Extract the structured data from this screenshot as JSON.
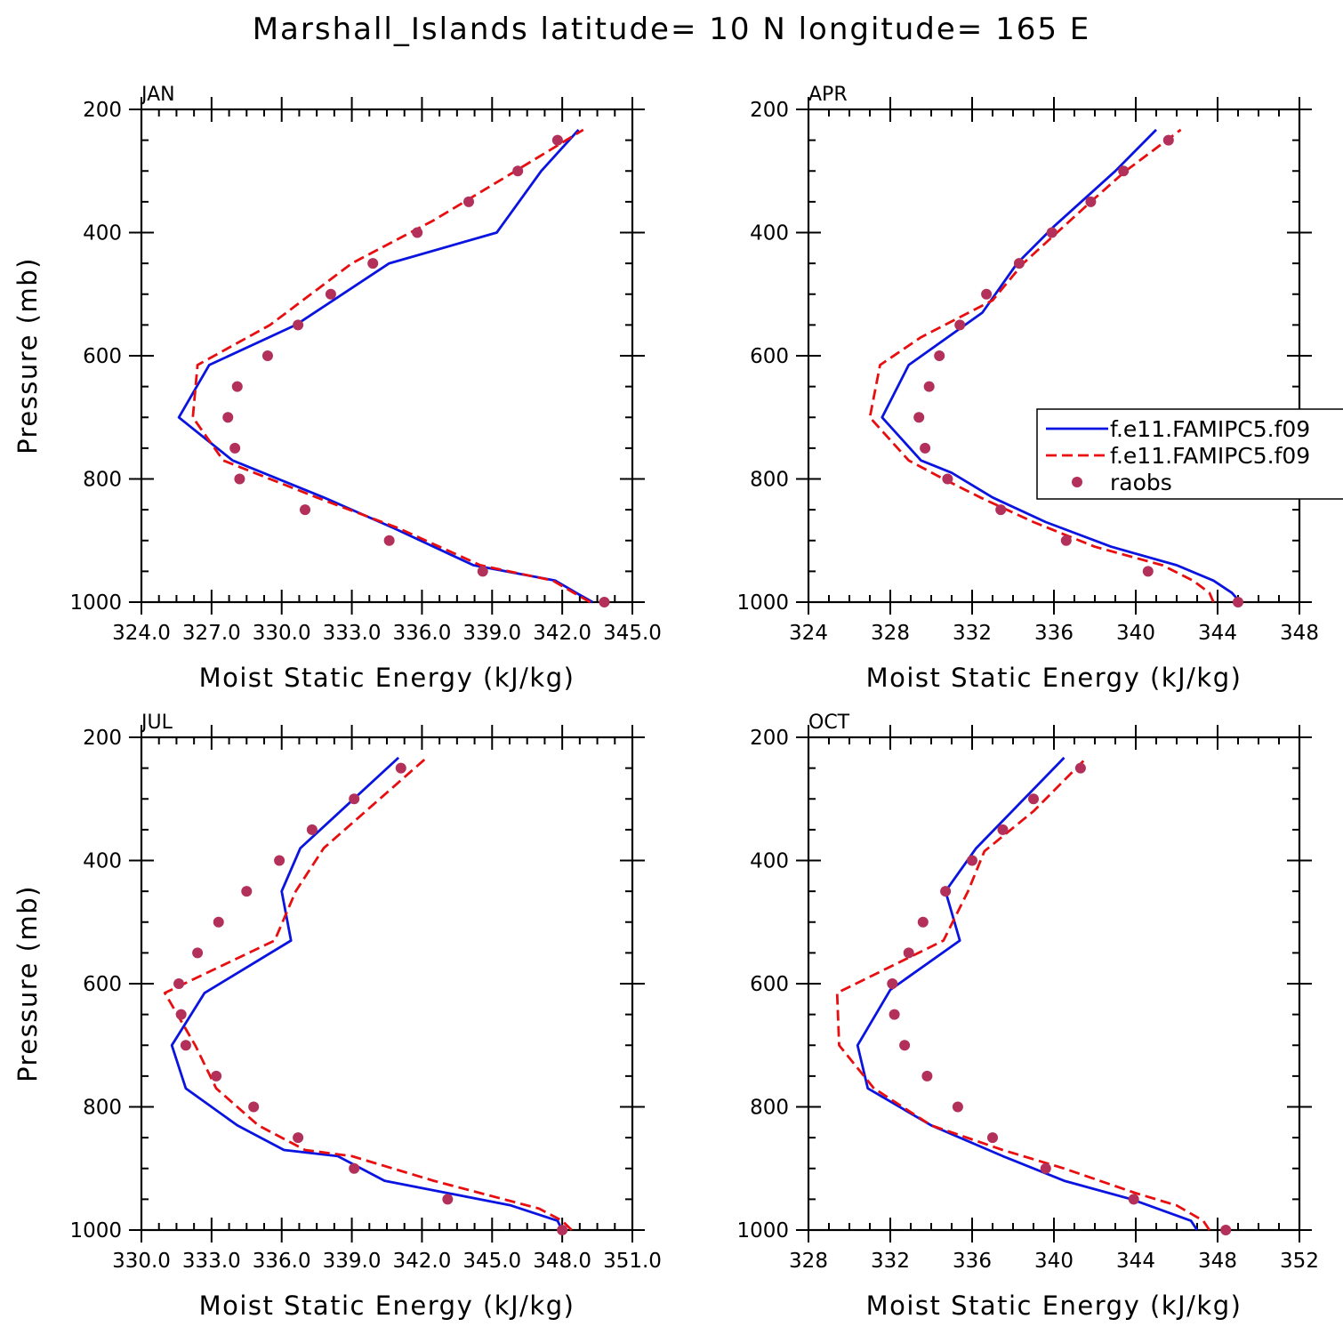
{
  "title": "Marshall_Islands  latitude= 10 N longitude= 165 E",
  "colors": {
    "model1": "#0a14e0",
    "model2": "#e80e10",
    "raobs": "#b2305a",
    "axis": "#000000"
  },
  "legend": {
    "entries": [
      {
        "label": "f.e11.FAMIPC5.f09",
        "series": "model1",
        "style": "solid"
      },
      {
        "label": "f.e11.FAMIPC5.f09",
        "series": "model2",
        "style": "dashed"
      },
      {
        "label": "raobs",
        "series": "raobs",
        "style": "marker"
      }
    ]
  },
  "chart_data": [
    {
      "type": "line",
      "panel": "JAN",
      "xlabel": "Moist Static Energy (kJ/kg)",
      "ylabel": "Pressure (mb)",
      "xlim": [
        324.0,
        345.0
      ],
      "ylim": [
        200,
        1000
      ],
      "y_reversed": true,
      "xticks": [
        324,
        327,
        330,
        333,
        336,
        339,
        342,
        345
      ],
      "xtick_labels": [
        "324.0",
        "327.0",
        "330.0",
        "333.0",
        "336.0",
        "339.0",
        "342.0",
        "345.0"
      ],
      "yticks": [
        200,
        400,
        600,
        800,
        1000
      ],
      "series": [
        {
          "name": "f.e11.FAMIPC5.f09",
          "key": "model1",
          "x": [
            343.3,
            342.6,
            341.7,
            338.2,
            334.8,
            331.8,
            327.9,
            325.6,
            326.9,
            330.6,
            334.6,
            339.2,
            341.1,
            342.7
          ],
          "y": [
            1000,
            985,
            965,
            940,
            880,
            830,
            770,
            700,
            615,
            550,
            450,
            400,
            300,
            233
          ]
        },
        {
          "name": "f.e11.FAMIPC5.f09",
          "key": "model2",
          "x": [
            343.2,
            342.5,
            341.6,
            338.5,
            335.0,
            331.5,
            327.5,
            326.2,
            326.4,
            329.5,
            333.0,
            336.5,
            340.0,
            342.9
          ],
          "y": [
            1000,
            985,
            965,
            940,
            880,
            830,
            770,
            700,
            615,
            550,
            450,
            380,
            300,
            233
          ]
        },
        {
          "name": "raobs",
          "key": "raobs",
          "x": [
            343.8,
            338.6,
            334.6,
            331.0,
            328.2,
            328.0,
            327.7,
            328.1,
            329.4,
            330.7,
            332.1,
            333.9,
            335.8,
            338.0,
            340.1,
            341.8
          ],
          "y": [
            1000,
            950,
            900,
            850,
            800,
            750,
            700,
            650,
            600,
            550,
            500,
            450,
            400,
            350,
            300,
            250
          ]
        }
      ]
    },
    {
      "type": "line",
      "panel": "APR",
      "xlabel": "Moist Static Energy (kJ/kg)",
      "ylabel": "Pressure (mb)",
      "xlim": [
        324,
        348
      ],
      "ylim": [
        200,
        1000
      ],
      "y_reversed": true,
      "xticks": [
        324,
        328,
        332,
        336,
        340,
        344,
        348
      ],
      "xtick_labels": [
        "324",
        "328",
        "332",
        "336",
        "340",
        "344",
        "348"
      ],
      "yticks": [
        200,
        400,
        600,
        800,
        1000
      ],
      "series": [
        {
          "name": "f.e11.FAMIPC5.f09",
          "key": "model1",
          "x": [
            345.1,
            344.7,
            343.8,
            342.0,
            338.8,
            335.6,
            333.0,
            331.0,
            329.5,
            327.6,
            328.9,
            332.5,
            334.2,
            336.0,
            339.0,
            341.0
          ],
          "y": [
            1000,
            985,
            965,
            940,
            910,
            870,
            830,
            790,
            770,
            700,
            615,
            530,
            450,
            390,
            300,
            233
          ]
        },
        {
          "name": "f.e11.FAMIPC5.f09",
          "key": "model2",
          "x": [
            343.8,
            343.6,
            342.8,
            341.3,
            338.0,
            335.0,
            332.4,
            330.6,
            328.9,
            327.0,
            327.5,
            329.5,
            333.0,
            334.5,
            337.8,
            339.5,
            342.2
          ],
          "y": [
            1000,
            985,
            965,
            940,
            910,
            870,
            830,
            800,
            770,
            700,
            615,
            570,
            510,
            450,
            350,
            300,
            233
          ]
        },
        {
          "name": "raobs",
          "key": "raobs",
          "x": [
            345.0,
            340.6,
            336.6,
            333.4,
            330.8,
            329.7,
            329.4,
            329.9,
            330.4,
            331.4,
            332.7,
            334.3,
            335.9,
            337.8,
            339.4,
            341.6
          ],
          "y": [
            1000,
            950,
            900,
            850,
            800,
            750,
            700,
            650,
            600,
            550,
            500,
            450,
            400,
            350,
            300,
            250
          ]
        }
      ]
    },
    {
      "type": "line",
      "panel": "JUL",
      "xlabel": "Moist Static Energy (kJ/kg)",
      "ylabel": "Pressure (mb)",
      "xlim": [
        330.0,
        351.0
      ],
      "ylim": [
        200,
        1000
      ],
      "y_reversed": true,
      "xticks": [
        330,
        333,
        336,
        339,
        342,
        345,
        348,
        351
      ],
      "xtick_labels": [
        "330.0",
        "333.0",
        "336.0",
        "339.0",
        "342.0",
        "345.0",
        "348.0",
        "351.0"
      ],
      "yticks": [
        200,
        400,
        600,
        800,
        1000
      ],
      "series": [
        {
          "name": "f.e11.FAMIPC5.f09",
          "key": "model1",
          "x": [
            348.0,
            347.8,
            345.8,
            340.4,
            338.4,
            336.1,
            334.1,
            331.9,
            331.3,
            332.7,
            336.4,
            336.0,
            336.8,
            341.0
          ],
          "y": [
            1000,
            985,
            960,
            920,
            880,
            870,
            830,
            770,
            700,
            615,
            530,
            450,
            380,
            233
          ]
        },
        {
          "name": "f.e11.FAMIPC5.f09",
          "key": "model2",
          "x": [
            348.4,
            348.0,
            347.0,
            342.5,
            339.0,
            337.0,
            335.0,
            333.2,
            332.3,
            331.0,
            335.7,
            336.6,
            337.8,
            342.2
          ],
          "y": [
            1000,
            985,
            965,
            920,
            880,
            870,
            830,
            770,
            700,
            615,
            530,
            450,
            380,
            233
          ]
        },
        {
          "name": "raobs",
          "key": "raobs",
          "x": [
            348.0,
            343.1,
            339.1,
            336.7,
            334.8,
            333.2,
            331.9,
            331.7,
            331.6,
            332.4,
            333.3,
            334.5,
            335.9,
            337.3,
            339.1,
            341.1
          ],
          "y": [
            1000,
            950,
            900,
            850,
            800,
            750,
            700,
            650,
            600,
            550,
            500,
            450,
            400,
            350,
            300,
            250
          ]
        }
      ]
    },
    {
      "type": "line",
      "panel": "OCT",
      "xlabel": "Moist Static Energy (kJ/kg)",
      "ylabel": "Pressure (mb)",
      "xlim": [
        328,
        352
      ],
      "ylim": [
        200,
        1000
      ],
      "y_reversed": true,
      "xticks": [
        328,
        332,
        336,
        340,
        344,
        348,
        352
      ],
      "xtick_labels": [
        "328",
        "332",
        "336",
        "340",
        "344",
        "348",
        "352"
      ],
      "yticks": [
        200,
        400,
        600,
        800,
        1000
      ],
      "series": [
        {
          "name": "f.e11.FAMIPC5.f09",
          "key": "model1",
          "x": [
            347.0,
            346.7,
            343.8,
            340.5,
            337.5,
            334.0,
            330.9,
            330.4,
            332.0,
            335.4,
            334.7,
            336.2,
            340.5
          ],
          "y": [
            1000,
            985,
            950,
            920,
            880,
            830,
            770,
            700,
            610,
            530,
            450,
            380,
            233
          ]
        },
        {
          "name": "f.e11.FAMIPC5.f09",
          "key": "model2",
          "x": [
            347.6,
            347.3,
            346.0,
            344.0,
            340.5,
            337.5,
            334.0,
            331.2,
            329.5,
            329.4,
            334.6,
            335.8,
            336.6,
            339.0,
            341.6
          ],
          "y": [
            1000,
            985,
            960,
            940,
            900,
            870,
            830,
            770,
            700,
            615,
            530,
            450,
            385,
            320,
            233
          ]
        },
        {
          "name": "raobs",
          "key": "raobs",
          "x": [
            348.4,
            343.9,
            339.6,
            337.0,
            335.3,
            333.8,
            332.7,
            332.2,
            332.1,
            332.9,
            333.6,
            334.7,
            336.0,
            337.5,
            339.0,
            341.3
          ],
          "y": [
            1000,
            950,
            900,
            850,
            800,
            750,
            700,
            650,
            600,
            550,
            500,
            450,
            400,
            350,
            300,
            250
          ]
        }
      ]
    }
  ]
}
